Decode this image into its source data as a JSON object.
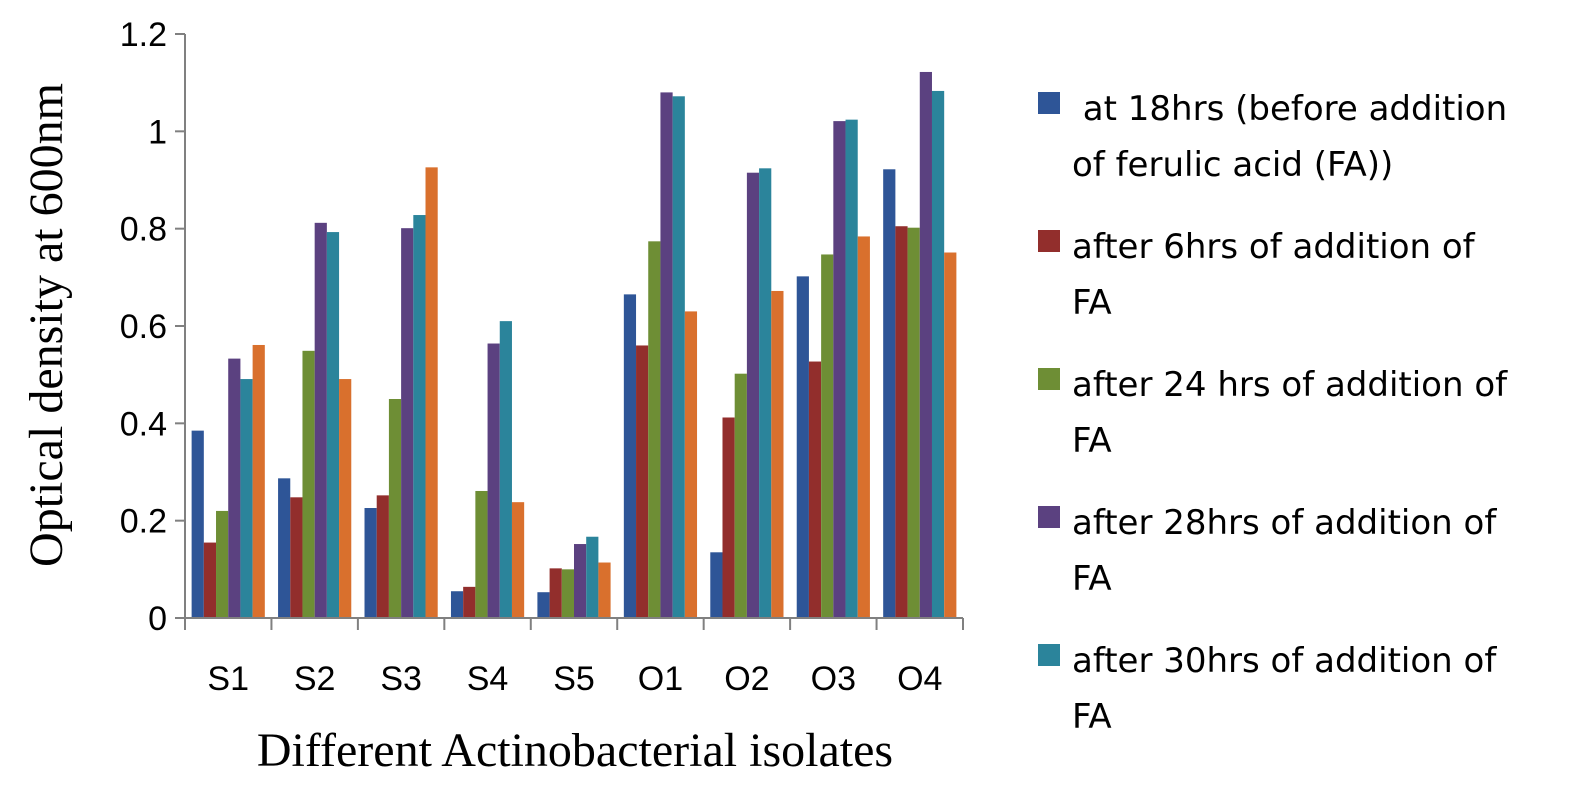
{
  "chart_data": {
    "type": "bar",
    "xlabel": "Different Actinobacterial isolates",
    "ylabel": "Optical density at 600nm",
    "ylim": [
      0,
      1.2
    ],
    "yticks": [
      "0",
      "0.2",
      "0.4",
      "0.6",
      "0.8",
      "1",
      "1.2"
    ],
    "grid": false,
    "legend_position": "right",
    "categories": [
      "S1",
      "S2",
      "S3",
      "S4",
      "S5",
      "O1",
      "O2",
      "O3",
      "O4"
    ],
    "series": [
      {
        "name": " at 18hrs (before addition of ferulic acid (FA))",
        "name_lines": [
          " at 18hrs (before addition",
          "of ferulic acid (FA))"
        ],
        "color": "#2E5597",
        "values": [
          0.385,
          0.287,
          0.226,
          0.055,
          0.053,
          0.665,
          0.135,
          0.702,
          0.922
        ]
      },
      {
        "name": "after 6hrs of addition of FA",
        "name_lines": [
          "after 6hrs of addition of",
          "FA"
        ],
        "color": "#922E2C",
        "values": [
          0.155,
          0.248,
          0.252,
          0.064,
          0.102,
          0.56,
          0.412,
          0.527,
          0.805
        ]
      },
      {
        "name": "after 24 hrs of addition of FA",
        "name_lines": [
          "after 24 hrs of addition of",
          "FA"
        ],
        "color": "#6E8E35",
        "values": [
          0.22,
          0.549,
          0.45,
          0.261,
          0.1,
          0.774,
          0.502,
          0.747,
          0.802
        ]
      },
      {
        "name": "after 28hrs of addition of FA",
        "name_lines": [
          "after 28hrs of addition of",
          "FA"
        ],
        "color": "#5B4180",
        "values": [
          0.533,
          0.812,
          0.801,
          0.564,
          0.152,
          1.08,
          0.915,
          1.021,
          1.122
        ]
      },
      {
        "name": "after 30hrs of addition of FA",
        "name_lines": [
          "after 30hrs of addition of",
          "FA"
        ],
        "color": "#2B849B",
        "values": [
          0.491,
          0.793,
          0.828,
          0.61,
          0.167,
          1.072,
          0.924,
          1.024,
          1.083
        ]
      },
      {
        "name": "",
        "color": "#D9702D",
        "values": [
          0.561,
          0.491,
          0.926,
          0.238,
          0.114,
          0.63,
          0.672,
          0.784,
          0.751
        ]
      }
    ]
  }
}
